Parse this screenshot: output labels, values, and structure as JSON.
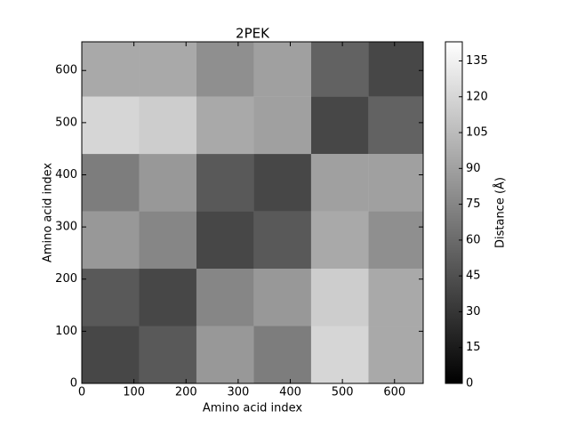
{
  "chart_data": {
    "type": "heatmap",
    "title": "2PEK",
    "x_label": "Amino acid index",
    "y_label": "Amino acid index",
    "xbins": [
      0,
      110,
      220,
      330,
      440,
      550,
      655
    ],
    "ybins": [
      0,
      110,
      220,
      330,
      440,
      550,
      655
    ],
    "values": [
      [
        40,
        50,
        85,
        70,
        120,
        95
      ],
      [
        50,
        40,
        75,
        85,
        115,
        95
      ],
      [
        85,
        75,
        40,
        50,
        95,
        80
      ],
      [
        70,
        85,
        50,
        40,
        90,
        90
      ],
      [
        120,
        115,
        95,
        90,
        40,
        55
      ],
      [
        95,
        95,
        80,
        90,
        55,
        40
      ]
    ],
    "xlim": [
      0,
      655
    ],
    "ylim": [
      0,
      655
    ],
    "xticks": [
      0,
      100,
      200,
      300,
      400,
      500,
      600
    ],
    "yticks": [
      0,
      100,
      200,
      300,
      400,
      500,
      600
    ],
    "colorbar": {
      "label": "Distance (Å)",
      "clim": [
        0,
        143
      ],
      "ticks": [
        0,
        15,
        30,
        45,
        60,
        75,
        90,
        105,
        120,
        135
      ]
    }
  }
}
